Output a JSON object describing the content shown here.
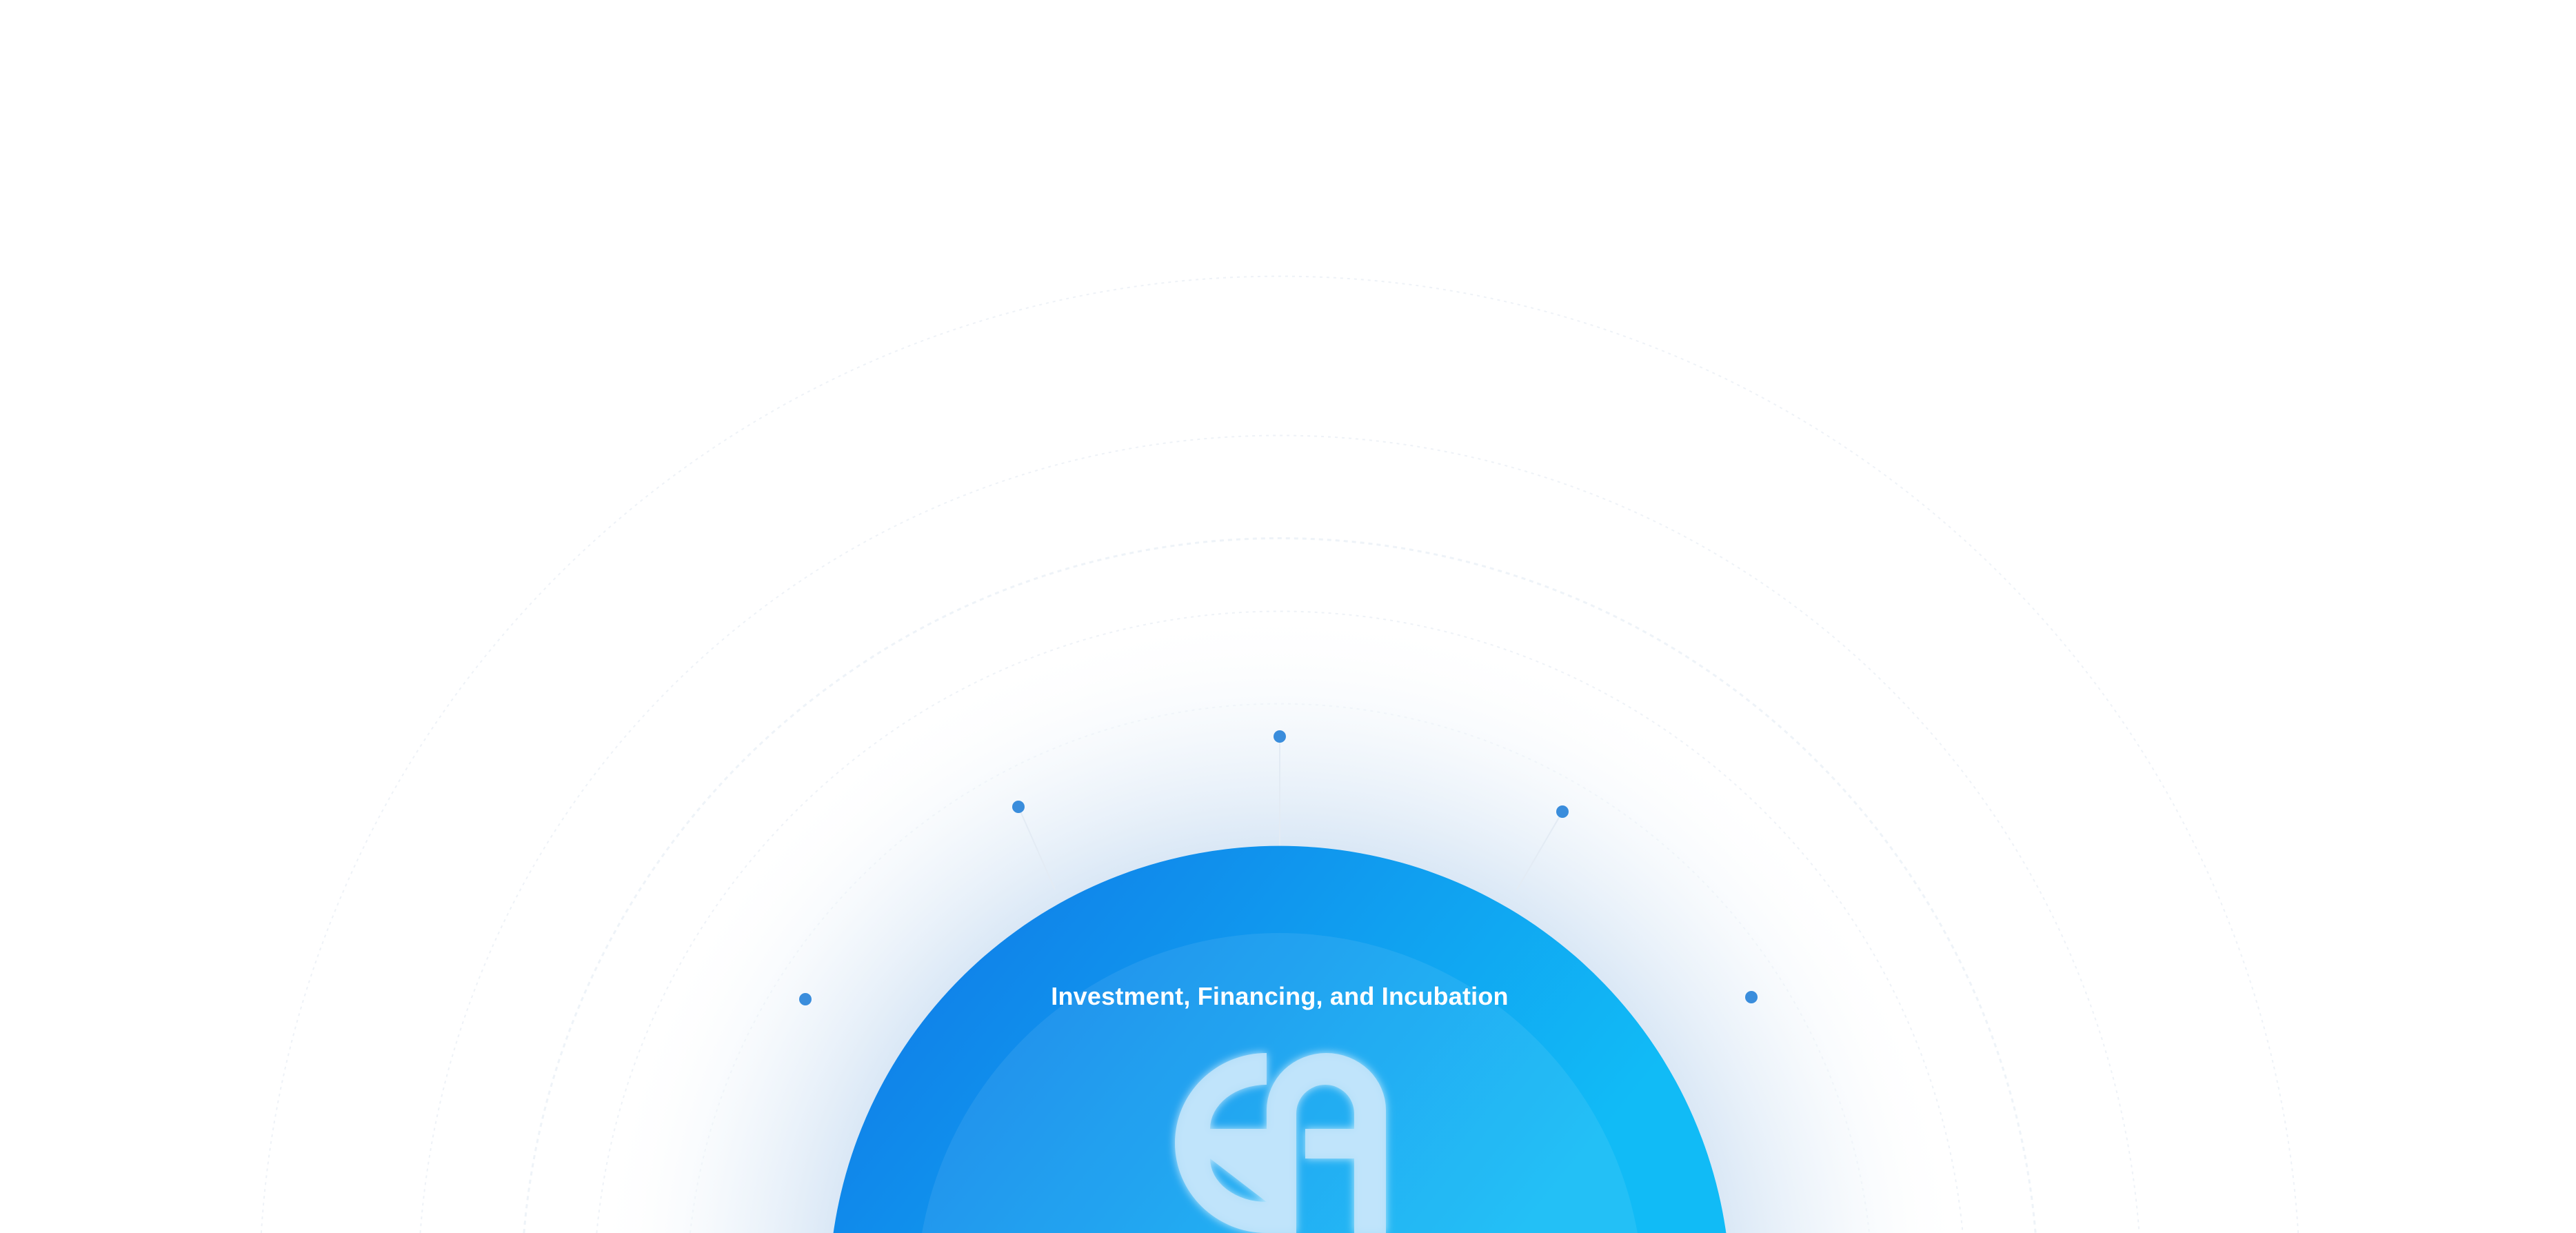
{
  "hero": {
    "headline": "Investment, Financing, and Incubation",
    "logo_text": "EA",
    "logo_icon": "ea-logo-icon",
    "nodes": [
      "node-top",
      "node-upper-left",
      "node-upper-right",
      "node-left",
      "node-right"
    ]
  },
  "colors": {
    "circle_start": "#0f78e8",
    "circle_end": "#12b6f5",
    "dot": "#3a8ddc",
    "logo": "#bfe3fb"
  }
}
